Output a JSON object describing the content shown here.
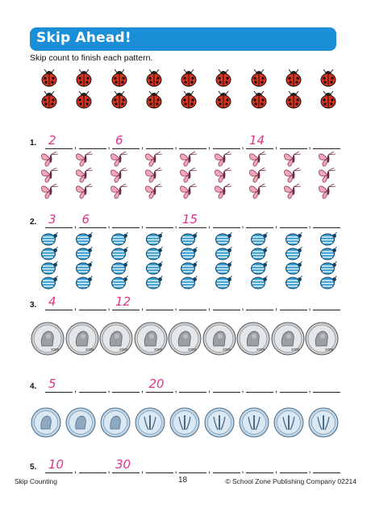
{
  "title": "Skip Ahead!",
  "instructions": "Skip count to finish each pattern.",
  "problems": [
    {
      "num": "1.",
      "answers": [
        "2",
        "",
        "6",
        "",
        "",
        "",
        "14",
        "",
        ""
      ]
    },
    {
      "num": "2.",
      "answers": [
        "3",
        "6",
        "",
        "",
        "15",
        "",
        "",
        "",
        ""
      ]
    },
    {
      "num": "3.",
      "answers": [
        "4",
        "",
        "12",
        "",
        "",
        "",
        "",
        "",
        ""
      ]
    },
    {
      "num": "4.",
      "answers": [
        "5",
        "",
        "",
        "20",
        "",
        "",
        "",
        "",
        ""
      ]
    },
    {
      "num": "5.",
      "answers": [
        "10",
        "",
        "30",
        "",
        "",
        "",
        "",
        "",
        ""
      ]
    }
  ],
  "nickel_year": "2009",
  "footer": {
    "left": "Skip Counting",
    "page": "18",
    "right": "© School Zone Publishing Company  02214"
  },
  "colors": {
    "banner": "#1a8fd8",
    "answers": "#e0338e",
    "ladybug": "#d9321f",
    "beetle": "#3a9fd0",
    "butterfly": "#f2a6b7"
  },
  "icons": [
    "ladybug-icon",
    "butterfly-icon",
    "beetle-icon",
    "nickel-icon",
    "dime-icon"
  ]
}
